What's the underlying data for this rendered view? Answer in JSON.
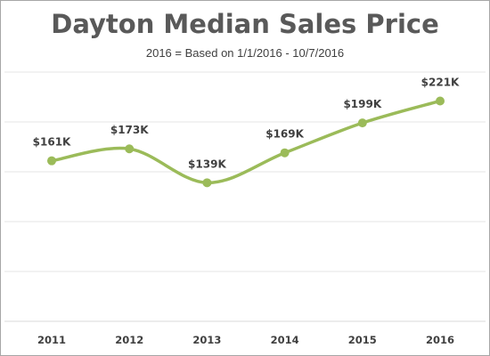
{
  "chart_data": {
    "type": "line",
    "title": "Dayton Median Sales Price",
    "subtitle": "2016 = Based on 1/1/2016 - 10/7/2016",
    "categories": [
      "2011",
      "2012",
      "2013",
      "2014",
      "2015",
      "2016"
    ],
    "values": [
      161,
      173,
      139,
      169,
      199,
      221
    ],
    "value_labels": [
      "$161K",
      "$173K",
      "$139K",
      "$169K",
      "$199K",
      "$221K"
    ],
    "ylim": [
      0,
      250
    ],
    "grid": true,
    "smooth": true,
    "line_color": "#9bbb59",
    "legend": "none"
  }
}
